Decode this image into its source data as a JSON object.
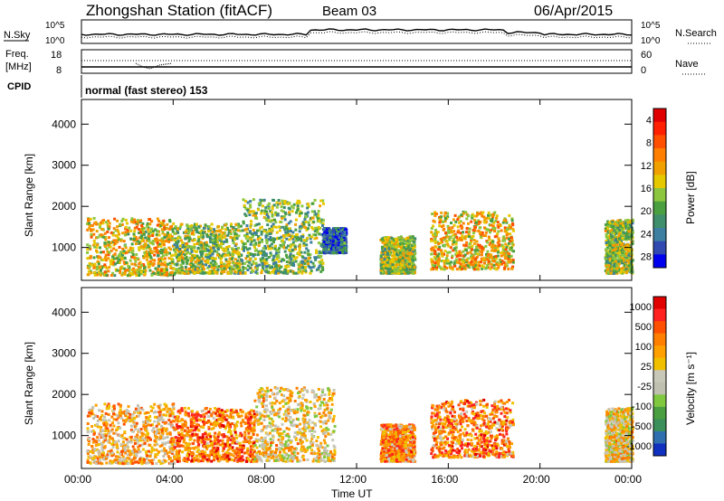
{
  "header": {
    "station": "Zhongshan Station (fitACF)",
    "beam": "Beam 03",
    "date": "06/Apr/2015"
  },
  "top_panels": {
    "nsky_label": "N.Sky",
    "nsearch_label": "N.Search",
    "freq_label_1": "Freq.",
    "freq_label_2": "[MHz]",
    "cpid_label": "CPID",
    "nave_label": "Nave",
    "noise_ticks_left": [
      "10^5",
      "10^0"
    ],
    "noise_ticks_right": [
      "10^5",
      "10^0"
    ],
    "freq_ticks": [
      "18",
      "8"
    ],
    "nave_ticks": [
      "60",
      "0"
    ],
    "cpid_text": "normal (fast stereo) 153"
  },
  "chart_data": [
    {
      "type": "heatmap",
      "name": "power",
      "ylabel": "Slant Range [km]",
      "xlabel": "",
      "x_ticks": [
        "00:00",
        "04:00",
        "08:00",
        "12:00",
        "16:00",
        "20:00",
        "00:00"
      ],
      "y_ticks": [
        "1000",
        "2000",
        "3000",
        "4000"
      ],
      "ylim": [
        200,
        4600
      ],
      "xlim": [
        0,
        24
      ],
      "colorbar_label": "Power [dB]",
      "colorbar_ticks": [
        "4",
        "8",
        "12",
        "16",
        "20",
        "24",
        "28"
      ],
      "colorbar_colors": [
        "#0000ee",
        "#2f49b0",
        "#3d7fa0",
        "#3f8f6c",
        "#4aa040",
        "#8cc63f",
        "#e6c800",
        "#f0a000",
        "#ff8000",
        "#ff5000",
        "#ff2000",
        "#e00000"
      ],
      "regions": [
        {
          "t": [
            0.2,
            4.0
          ],
          "r": [
            350,
            1750
          ],
          "level": 0.55
        },
        {
          "t": [
            4.0,
            7.0
          ],
          "r": [
            400,
            1600
          ],
          "level": 0.45
        },
        {
          "t": [
            7.0,
            10.5
          ],
          "r": [
            400,
            2200
          ],
          "level": 0.4
        },
        {
          "t": [
            10.5,
            11.5
          ],
          "r": [
            900,
            1500
          ],
          "level": 0.2
        },
        {
          "t": [
            13.0,
            14.5
          ],
          "r": [
            400,
            1300
          ],
          "level": 0.45
        },
        {
          "t": [
            15.2,
            18.8
          ],
          "r": [
            500,
            1900
          ],
          "level": 0.6
        },
        {
          "t": [
            22.8,
            24.0
          ],
          "r": [
            400,
            1700
          ],
          "level": 0.45
        }
      ]
    },
    {
      "type": "heatmap",
      "name": "velocity",
      "ylabel": "Slant Range [km]",
      "xlabel": "Time UT",
      "x_ticks": [
        "00:00",
        "04:00",
        "08:00",
        "12:00",
        "16:00",
        "20:00",
        "00:00"
      ],
      "y_ticks": [
        "1000",
        "2000",
        "3000",
        "4000"
      ],
      "ylim": [
        200,
        4600
      ],
      "xlim": [
        0,
        24
      ],
      "colorbar_label": "Velocity [m s⁻¹]",
      "colorbar_ticks": [
        "1000",
        "500",
        "100",
        "25",
        "-25",
        "-100",
        "-500",
        "-1000"
      ],
      "colorbar_colors": [
        "#1030c0",
        "#2f6fb0",
        "#3b8f5a",
        "#4aa040",
        "#80c840",
        "#c0c0b0",
        "#c8c8b8",
        "#f0c000",
        "#ffa000",
        "#ff8000",
        "#ff5000",
        "#ff2020",
        "#e00000"
      ],
      "regions": [
        {
          "t": [
            0.2,
            4.0
          ],
          "r": [
            350,
            1800
          ],
          "level": 0.62
        },
        {
          "t": [
            4.0,
            7.5
          ],
          "r": [
            400,
            1700
          ],
          "level": 0.75
        },
        {
          "t": [
            7.5,
            11.0
          ],
          "r": [
            400,
            2200
          ],
          "level": 0.55
        },
        {
          "t": [
            13.0,
            14.5
          ],
          "r": [
            400,
            1300
          ],
          "level": 0.7
        },
        {
          "t": [
            15.2,
            18.8
          ],
          "r": [
            500,
            1900
          ],
          "level": 0.72
        },
        {
          "t": [
            22.8,
            24.0
          ],
          "r": [
            400,
            1700
          ],
          "level": 0.55
        }
      ]
    }
  ]
}
